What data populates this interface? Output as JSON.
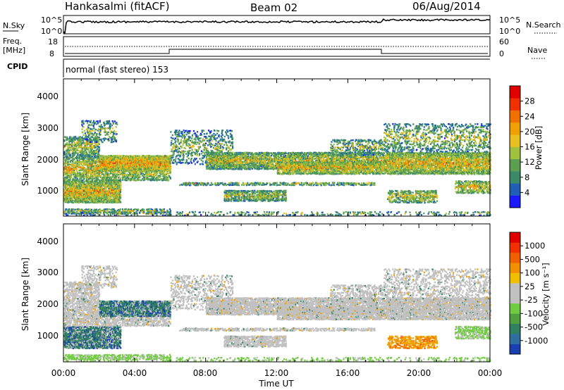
{
  "header": {
    "station": "Hankasalmi (fitACF)",
    "beam": "Beam 02",
    "date": "06/Aug/2014"
  },
  "strip": {
    "nsky_label": "N.Sky",
    "nsearch_label": "N.Search",
    "left_ticks": [
      "10^5",
      "10^0"
    ],
    "right_ticks": [
      "10^5",
      "10^0"
    ],
    "freq_label_top": "Freq.",
    "freq_label_bottom": "[MHz]",
    "freq_ticks": [
      "18",
      "8"
    ],
    "nave_label": "Nave",
    "nave_ticks": [
      "60",
      "0"
    ],
    "cpid_label": "CPID",
    "cpid_text": "normal (fast stereo) 153"
  },
  "axes": {
    "ylabel": "Slant Range [km]",
    "xlabel": "Time UT",
    "xticks": [
      "00:00",
      "04:00",
      "08:00",
      "12:00",
      "16:00",
      "20:00",
      "00:00"
    ],
    "yticks": [
      "1000",
      "2000",
      "3000",
      "4000"
    ]
  },
  "colorbars": {
    "power": {
      "label": "Power [dB]",
      "ticks": [
        "4",
        "8",
        "12",
        "16",
        "20",
        "24",
        "28"
      ],
      "colors": [
        "#1a1aff",
        "#1f5fb8",
        "#3a8a6a",
        "#5aa050",
        "#a0c040",
        "#e8c020",
        "#f0a000",
        "#f07000",
        "#f03000",
        "#e00000"
      ]
    },
    "velocity": {
      "label": "Velocity [m s⁻¹]",
      "ticks": [
        "1000",
        "500",
        "100",
        "25",
        "-25",
        "-100",
        "-500",
        "-1000"
      ],
      "colors": [
        "#1a3fb0",
        "#2f6fa0",
        "#2f8060",
        "#50a040",
        "#70cc40",
        "#c0c0c0",
        "#c0c0c0",
        "#f0c000",
        "#f09000",
        "#f06000",
        "#f03000",
        "#e00000"
      ]
    }
  },
  "chart_data": [
    {
      "type": "line",
      "title": "",
      "series": [
        {
          "name": "N.Sky"
        },
        {
          "name": "N.Search"
        }
      ],
      "xlim": [
        0,
        24
      ],
      "ylim": [
        0,
        5
      ]
    },
    {
      "type": "line",
      "series": [
        {
          "name": "Freq.",
          "values_segments": [
            [
              0,
              6,
              10
            ],
            [
              6,
              18,
              12
            ],
            [
              18,
              24,
              10
            ]
          ]
        },
        {
          "name": "Nave"
        }
      ],
      "ylim": [
        8,
        18
      ]
    },
    {
      "type": "heatmap",
      "title": "Power",
      "xlabel": "Time UT",
      "ylabel": "Slant Range [km]",
      "xlim": [
        0,
        24
      ],
      "ylim": [
        180,
        4500
      ],
      "colorbar": "Power [dB]",
      "crange": [
        0,
        30
      ]
    },
    {
      "type": "heatmap",
      "title": "Velocity",
      "xlabel": "Time UT",
      "ylabel": "Slant Range [km]",
      "xlim": [
        0,
        24
      ],
      "ylim": [
        180,
        4500
      ],
      "colorbar": "Velocity [m s-1]",
      "crange": [
        -1000,
        1000
      ]
    }
  ]
}
